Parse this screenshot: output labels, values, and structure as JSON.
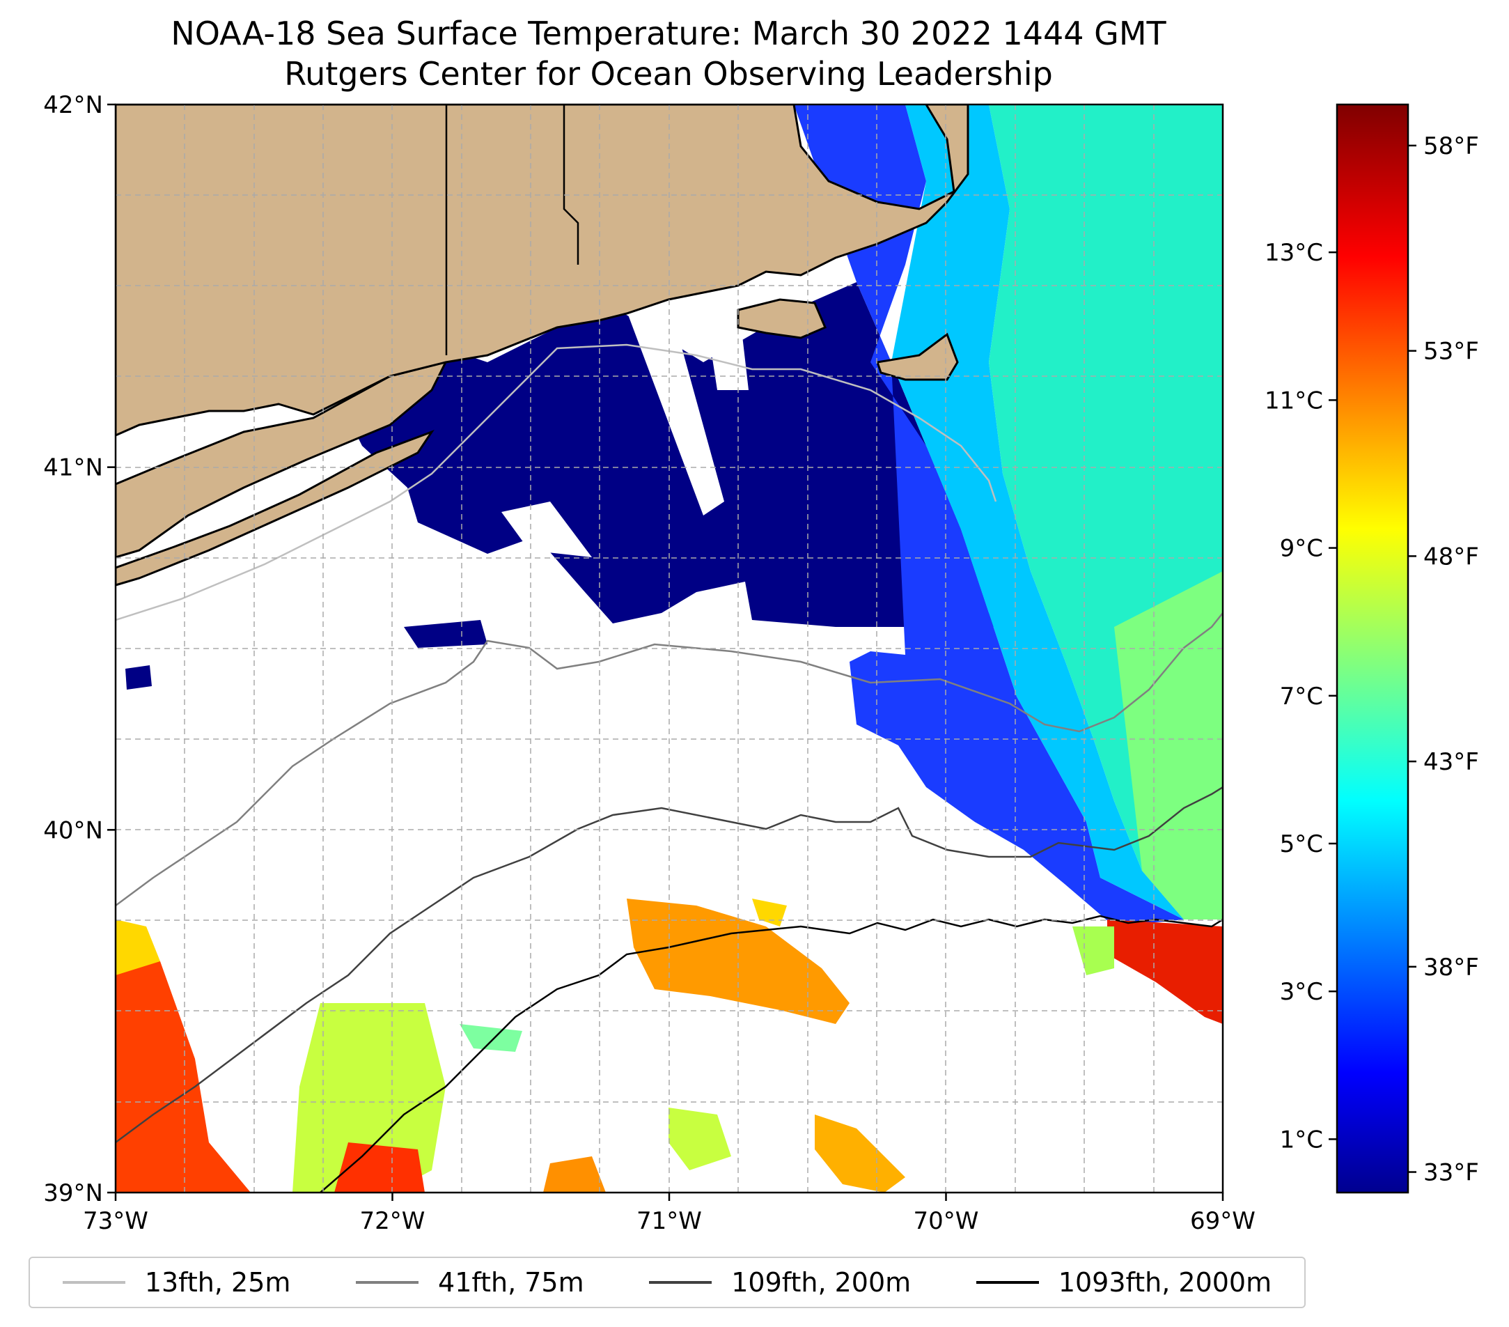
{
  "title_line1": "NOAA-18 Sea Surface Temperature: March 30 2022 1444 GMT",
  "title_line2": "Rutgers Center for Ocean Observing Leadership",
  "map": {
    "extent": {
      "lon": [
        -73,
        -69
      ],
      "lat": [
        39,
        42
      ]
    },
    "lon_ticks": [
      {
        "value": -73,
        "label": "73°W"
      },
      {
        "value": -72,
        "label": "72°W"
      },
      {
        "value": -71,
        "label": "71°W"
      },
      {
        "value": -70,
        "label": "70°W"
      },
      {
        "value": -69,
        "label": "69°W"
      }
    ],
    "lat_ticks": [
      {
        "value": 42,
        "label": "42°N"
      },
      {
        "value": 41,
        "label": "41°N"
      },
      {
        "value": 40,
        "label": "40°N"
      },
      {
        "value": 39,
        "label": "39°N"
      }
    ],
    "gridlines": "dashed",
    "land_color": "#d2b48c",
    "no_data_color": "#ffffff"
  },
  "colorbar": {
    "colormap": "jet",
    "range_f": [
      32.5,
      59
    ],
    "fahrenheit_ticks": [
      {
        "value": 33,
        "label": "33°F"
      },
      {
        "value": 38,
        "label": "38°F"
      },
      {
        "value": 43,
        "label": "43°F"
      },
      {
        "value": 48,
        "label": "48°F"
      },
      {
        "value": 53,
        "label": "53°F"
      },
      {
        "value": 58,
        "label": "58°F"
      }
    ],
    "celsius_ticks": [
      {
        "value": 1,
        "label": "1°C"
      },
      {
        "value": 3,
        "label": "3°C"
      },
      {
        "value": 5,
        "label": "5°C"
      },
      {
        "value": 7,
        "label": "7°C"
      },
      {
        "value": 9,
        "label": "9°C"
      },
      {
        "value": 11,
        "label": "11°C"
      },
      {
        "value": 13,
        "label": "13°C"
      }
    ]
  },
  "legend": [
    {
      "label": "13fth, 25m",
      "color": "#bfbfbf"
    },
    {
      "label": "41fth, 75m",
      "color": "#808080"
    },
    {
      "label": "109fth, 200m",
      "color": "#404040"
    },
    {
      "label": "1093fth, 2000m",
      "color": "#000000"
    }
  ]
}
